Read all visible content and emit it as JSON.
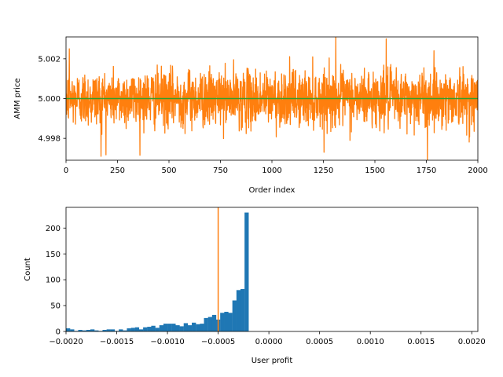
{
  "chart_data": [
    {
      "type": "line",
      "xlabel": "Order index",
      "ylabel": "AMM price",
      "xlim": [
        0,
        2000
      ],
      "ylim": [
        4.9969,
        5.0031
      ],
      "xticks": [
        "0",
        "250",
        "500",
        "750",
        "1000",
        "1250",
        "1500",
        "1750",
        "2000"
      ],
      "yticks": [
        "4.998",
        "5.000",
        "5.002"
      ],
      "xtick_values": [
        0,
        250,
        500,
        750,
        1000,
        1250,
        1500,
        1750,
        2000
      ],
      "ytick_values": [
        4.998,
        5.0,
        5.002
      ],
      "series": [
        {
          "color": "#ff7f0e",
          "n_points": 2000,
          "center": 5.0,
          "approx_std": 0.0007,
          "notable_points": [
            {
              "x": 16,
              "y": 5.0025
            },
            {
              "x": 170,
              "y": 4.9971
            },
            {
              "x": 1310,
              "y": 5.0031
            },
            {
              "x": 1555,
              "y": 5.003
            },
            {
              "x": 1755,
              "y": 4.9969
            }
          ]
        },
        {
          "color": "#2ca02c",
          "x": [
            0,
            2000
          ],
          "y": [
            5.0,
            5.0
          ]
        }
      ],
      "grid": false
    },
    {
      "type": "bar",
      "xlabel": "User profit",
      "ylabel": "Count",
      "xlim": [
        -0.002,
        0.00206
      ],
      "ylim": [
        0,
        240
      ],
      "xticks": [
        "−0.0020",
        "−0.0015",
        "−0.0010",
        "−0.0005",
        "0.0000",
        "0.0005",
        "0.0010",
        "0.0015",
        "0.0020"
      ],
      "yticks": [
        "0",
        "50",
        "100",
        "150",
        "200"
      ],
      "xtick_values": [
        -0.002,
        -0.0015,
        -0.001,
        -0.0005,
        0.0,
        0.0005,
        0.001,
        0.0015,
        0.002
      ],
      "ytick_values": [
        0,
        50,
        100,
        150,
        200
      ],
      "bin_width": 4e-05,
      "bin_start": -0.002,
      "values": [
        6,
        4,
        1,
        3,
        2,
        3,
        4,
        2,
        1,
        3,
        4,
        4,
        1,
        4,
        2,
        6,
        7,
        8,
        4,
        8,
        9,
        11,
        7,
        12,
        15,
        15,
        15,
        12,
        10,
        16,
        12,
        17,
        14,
        15,
        26,
        28,
        32,
        23,
        36,
        38,
        36,
        60,
        80,
        82,
        230
      ],
      "bar_color": "#1f77b4",
      "vline": {
        "x": -0.0005,
        "color": "#ff7f0e"
      },
      "grid": false
    }
  ]
}
